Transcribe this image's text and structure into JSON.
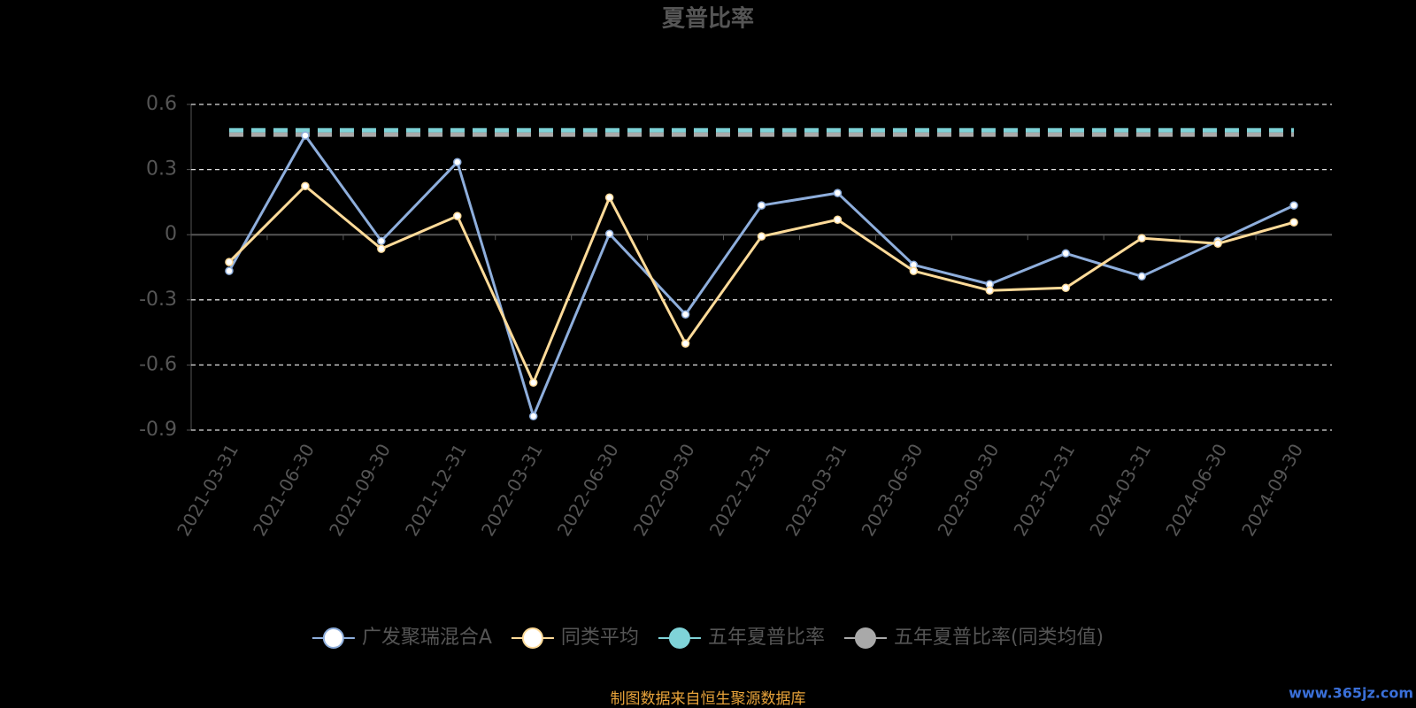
{
  "chart_data": {
    "type": "line",
    "title": "夏普比率",
    "categories": [
      "2021-03-31",
      "2021-06-30",
      "2021-09-30",
      "2021-12-31",
      "2022-03-31",
      "2022-06-30",
      "2022-09-30",
      "2022-12-31",
      "2023-03-31",
      "2023-06-30",
      "2023-09-30",
      "2023-12-31",
      "2024-03-31",
      "2024-06-30",
      "2024-09-30"
    ],
    "series": [
      {
        "name": "广发聚瑞混合A",
        "color": "#8eaedc",
        "line_style": "solid",
        "values": [
          -0.167,
          0.457,
          -0.029,
          0.334,
          -0.836,
          0.004,
          -0.367,
          0.135,
          0.192,
          -0.139,
          -0.228,
          -0.086,
          -0.192,
          -0.029,
          0.135
        ]
      },
      {
        "name": "同类平均",
        "color": "#ffdb99",
        "line_style": "solid",
        "values": [
          -0.126,
          0.224,
          -0.065,
          0.086,
          -0.681,
          0.171,
          -0.501,
          -0.008,
          0.069,
          -0.167,
          -0.257,
          -0.245,
          -0.016,
          -0.041,
          0.057
        ]
      },
      {
        "name": "五年夏普比率",
        "color": "#7fd3d8",
        "line_style": "dashed",
        "values": [
          0.481,
          0.481,
          0.481,
          0.481,
          0.481,
          0.481,
          0.481,
          0.481,
          0.481,
          0.481,
          0.481,
          0.481,
          0.481,
          0.481,
          0.481
        ]
      },
      {
        "name": "五年夏普比率(同类均值)",
        "color": "#a9a9a9",
        "line_style": "dashed",
        "values": [
          0.461,
          0.461,
          0.461,
          0.461,
          0.461,
          0.461,
          0.461,
          0.461,
          0.461,
          0.461,
          0.461,
          0.461,
          0.461,
          0.461,
          0.461
        ]
      }
    ],
    "ylim": [
      -0.9,
      0.6
    ],
    "yticks": [
      0.6,
      0.3,
      0,
      -0.3,
      -0.6,
      -0.9
    ],
    "grid": true,
    "source": "制图数据来自恒生聚源数据库",
    "watermark": "www.365jz.com"
  }
}
